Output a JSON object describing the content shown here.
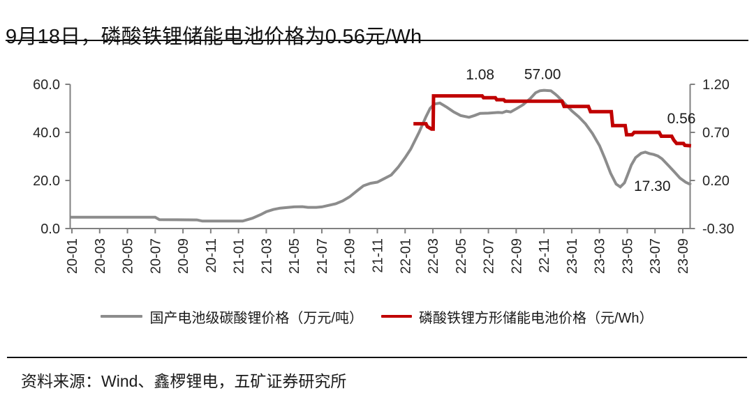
{
  "page": {
    "title": "9月18日，磷酸铁锂储能电池价格为0.56元/Wh",
    "source": "资料来源：Wind、鑫椤锂电，五矿证券研究所"
  },
  "chart_data": {
    "type": "line",
    "title": "",
    "x_tick_labels": [
      "20-01",
      "20-03",
      "20-05",
      "20-07",
      "20-09",
      "20-11",
      "21-01",
      "21-03",
      "21-05",
      "21-07",
      "21-09",
      "21-11",
      "22-01",
      "22-03",
      "22-05",
      "22-07",
      "22-09",
      "22-11",
      "23-01",
      "23-03",
      "23-05",
      "23-07",
      "23-09"
    ],
    "x_months_per_tick": 2,
    "x_month_range": [
      0,
      44.6
    ],
    "left_axis": {
      "min": 0,
      "max": 60,
      "tick_values": [
        60,
        40,
        20,
        0
      ],
      "tick_labels": [
        "60.0",
        "40.0",
        "20.0",
        "0.0"
      ],
      "unit": "万元/吨"
    },
    "right_axis": {
      "min": -0.3,
      "max": 1.2,
      "tick_values": [
        1.2,
        0.7,
        0.2,
        -0.3
      ],
      "tick_labels": [
        "1.20",
        "0.70",
        "0.20",
        "-0.30"
      ],
      "unit": "元/Wh"
    },
    "axis_color": "#808080",
    "label_color": "#262626",
    "grid": false,
    "legend_position": "bottom",
    "series": [
      {
        "key": "lithium-carbonate-price-line",
        "name": "国产电池级碳酸锂价格（万元/吨）",
        "color": "#8C8C8C",
        "axis": "left",
        "stroke_width": 4,
        "points": [
          [
            -0.1,
            4.7
          ],
          [
            3,
            4.7
          ],
          [
            6,
            4.7
          ],
          [
            6.3,
            3.7
          ],
          [
            9,
            3.6
          ],
          [
            9.4,
            3.1
          ],
          [
            12.3,
            3.1
          ],
          [
            13,
            4.3
          ],
          [
            13.6,
            5.8
          ],
          [
            14,
            7.0
          ],
          [
            14.5,
            7.9
          ],
          [
            15,
            8.5
          ],
          [
            16,
            9.0
          ],
          [
            16.6,
            9.1
          ],
          [
            17,
            8.8
          ],
          [
            17.6,
            8.8
          ],
          [
            18,
            9.0
          ],
          [
            19,
            10.3
          ],
          [
            19.5,
            11.5
          ],
          [
            20,
            13.2
          ],
          [
            20.6,
            16.0
          ],
          [
            21,
            17.8
          ],
          [
            21.5,
            18.8
          ],
          [
            22,
            19.3
          ],
          [
            22.4,
            20.5
          ],
          [
            23,
            22.3
          ],
          [
            23.5,
            25.5
          ],
          [
            24,
            29.5
          ],
          [
            24.4,
            33
          ],
          [
            25,
            40
          ],
          [
            25.5,
            46.5
          ],
          [
            25.8,
            50
          ],
          [
            26.1,
            51.8
          ],
          [
            26.5,
            52.2
          ],
          [
            27,
            50.5
          ],
          [
            27.5,
            48.5
          ],
          [
            28,
            47
          ],
          [
            28.6,
            46.3
          ],
          [
            29,
            47
          ],
          [
            29.4,
            47.9
          ],
          [
            30,
            48
          ],
          [
            30.7,
            48.3
          ],
          [
            31,
            48.2
          ],
          [
            31.3,
            48.8
          ],
          [
            31.6,
            48.5
          ],
          [
            32,
            49.8
          ],
          [
            32.5,
            51.5
          ],
          [
            33,
            54
          ],
          [
            33.4,
            56.5
          ],
          [
            33.7,
            57.3
          ],
          [
            34,
            57.5
          ],
          [
            34.5,
            57.3
          ],
          [
            34.8,
            56
          ],
          [
            35,
            55
          ],
          [
            35.5,
            52
          ],
          [
            36,
            49
          ],
          [
            36.5,
            46.5
          ],
          [
            37,
            43.5
          ],
          [
            37.5,
            39.5
          ],
          [
            38,
            34.5
          ],
          [
            38.4,
            29
          ],
          [
            38.8,
            23
          ],
          [
            39.2,
            18.5
          ],
          [
            39.5,
            17.3
          ],
          [
            39.8,
            19
          ],
          [
            40,
            22
          ],
          [
            40.3,
            26.5
          ],
          [
            40.6,
            29.5
          ],
          [
            41,
            31.3
          ],
          [
            41.3,
            31.8
          ],
          [
            41.6,
            31.2
          ],
          [
            41.9,
            30.8
          ],
          [
            42.2,
            30.2
          ],
          [
            42.5,
            29
          ],
          [
            43,
            26
          ],
          [
            43.4,
            23.5
          ],
          [
            43.8,
            21
          ],
          [
            44.2,
            19.3
          ],
          [
            44.6,
            18.2
          ]
        ]
      },
      {
        "key": "lfp-battery-price-line",
        "name": "磷酸铁锂方形储能电池价格（元/Wh）",
        "color": "#C00000",
        "axis": "right",
        "stroke_width": 5,
        "points": [
          [
            24.6,
            0.79
          ],
          [
            25.5,
            0.79
          ],
          [
            25.6,
            0.76
          ],
          [
            25.9,
            0.735
          ],
          [
            26.02,
            0.735
          ],
          [
            26.05,
            1.08
          ],
          [
            29.55,
            1.08
          ],
          [
            29.65,
            1.06
          ],
          [
            30.5,
            1.06
          ],
          [
            30.6,
            1.04
          ],
          [
            31.1,
            1.04
          ],
          [
            31.2,
            1.025
          ],
          [
            35.3,
            1.025
          ],
          [
            35.45,
            0.97
          ],
          [
            37.2,
            0.97
          ],
          [
            37.35,
            0.915
          ],
          [
            38.85,
            0.915
          ],
          [
            38.95,
            0.77
          ],
          [
            39.85,
            0.77
          ],
          [
            39.95,
            0.675
          ],
          [
            40.35,
            0.675
          ],
          [
            40.5,
            0.7
          ],
          [
            42.3,
            0.7
          ],
          [
            42.45,
            0.66
          ],
          [
            43.2,
            0.66
          ],
          [
            43.35,
            0.62
          ],
          [
            43.55,
            0.585
          ],
          [
            44.05,
            0.585
          ],
          [
            44.15,
            0.565
          ],
          [
            44.6,
            0.56
          ]
        ]
      }
    ],
    "annotations": [
      {
        "text": "1.08",
        "month": 29.4,
        "value": 1.3,
        "axis": "right"
      },
      {
        "text": "57.00",
        "month": 33.9,
        "value": 64.2,
        "axis": "left"
      },
      {
        "text": "0.56",
        "month": 43.9,
        "value": 0.845,
        "axis": "right"
      },
      {
        "text": "17.30",
        "month": 41.8,
        "value": 17.7,
        "axis": "left"
      }
    ]
  }
}
